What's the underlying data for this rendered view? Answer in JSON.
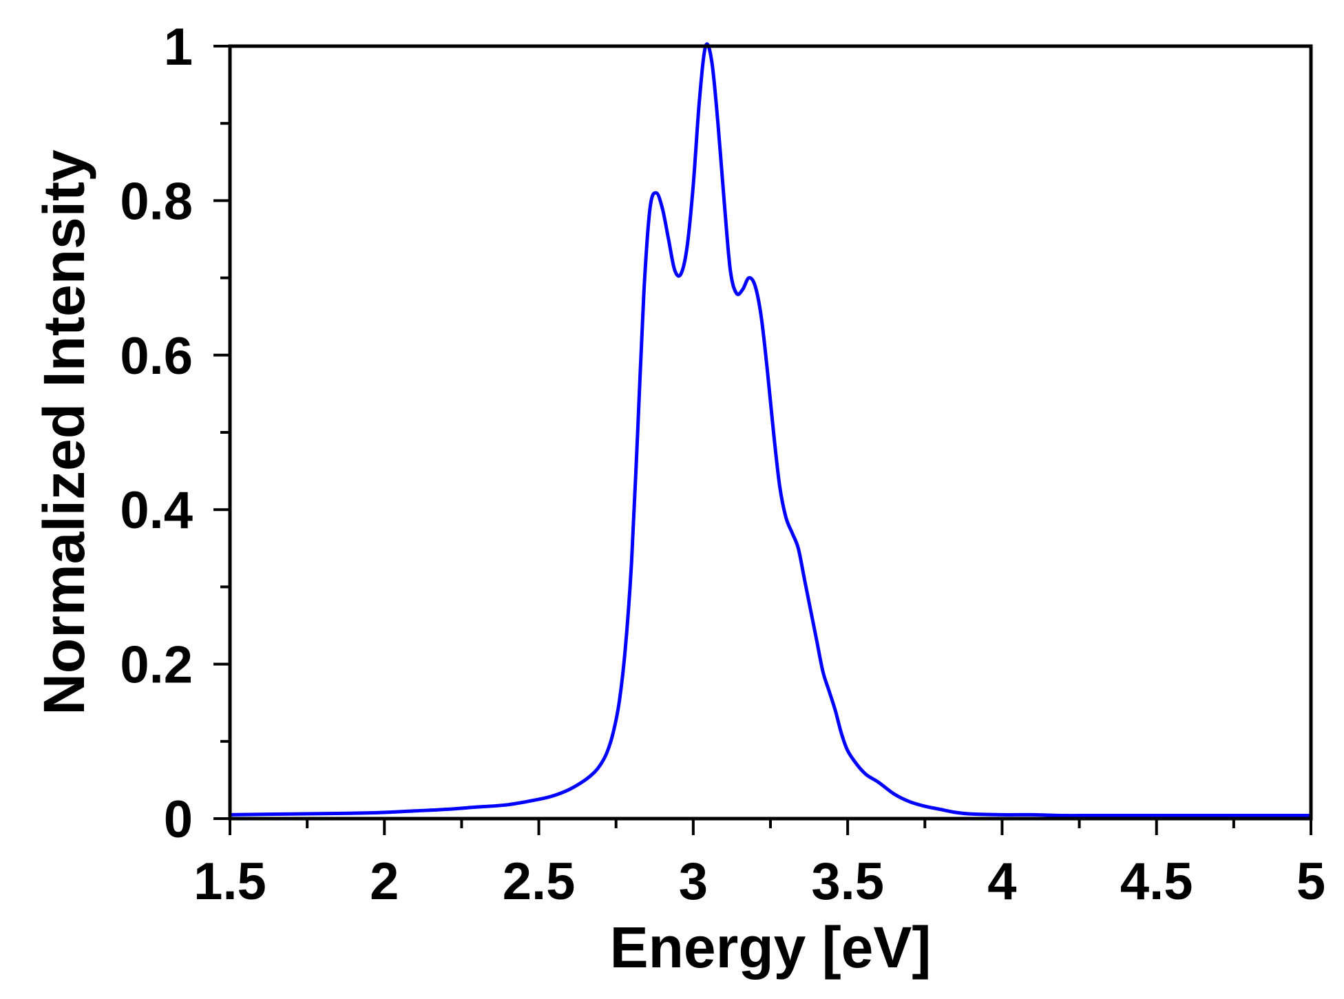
{
  "chart_data": {
    "type": "line",
    "title": "",
    "xlabel": "Energy [eV]",
    "ylabel": "Normalized Intensity",
    "xlim": [
      1.5,
      5
    ],
    "ylim": [
      0,
      1
    ],
    "x_major_ticks": [
      1.5,
      2,
      2.5,
      3,
      3.5,
      4,
      4.5,
      5
    ],
    "x_tick_labels": [
      "1.5",
      "2",
      "2.5",
      "3",
      "3.5",
      "4",
      "4.5",
      "5"
    ],
    "x_minor_ticks": [
      1.75,
      2.25,
      2.75,
      3.25,
      3.75,
      4.25,
      4.75
    ],
    "y_major_ticks": [
      0,
      0.2,
      0.4,
      0.6,
      0.8,
      1
    ],
    "y_tick_labels": [
      "0",
      "0.2",
      "0.4",
      "0.6",
      "0.8",
      "1"
    ],
    "y_minor_ticks": [
      0.1,
      0.3,
      0.5,
      0.7,
      0.9
    ],
    "grid": false,
    "line_color": "#0000ff",
    "series": [
      {
        "x": [
          1.5,
          1.7,
          1.9,
          2.0,
          2.1,
          2.2,
          2.3,
          2.4,
          2.5,
          2.55,
          2.6,
          2.65,
          2.68,
          2.7,
          2.72,
          2.74,
          2.76,
          2.78,
          2.8,
          2.82,
          2.84,
          2.86,
          2.88,
          2.9,
          2.92,
          2.94,
          2.96,
          2.98,
          3.0,
          3.02,
          3.04,
          3.06,
          3.08,
          3.1,
          3.12,
          3.14,
          3.16,
          3.18,
          3.2,
          3.22,
          3.24,
          3.26,
          3.28,
          3.3,
          3.32,
          3.34,
          3.36,
          3.38,
          3.4,
          3.42,
          3.44,
          3.46,
          3.48,
          3.5,
          3.53,
          3.56,
          3.6,
          3.65,
          3.7,
          3.75,
          3.8,
          3.85,
          3.9,
          4.0,
          4.1,
          4.2,
          4.3,
          4.5,
          4.75,
          5.0
        ],
        "y": [
          0.005,
          0.006,
          0.007,
          0.008,
          0.01,
          0.012,
          0.015,
          0.018,
          0.025,
          0.03,
          0.038,
          0.05,
          0.06,
          0.07,
          0.085,
          0.11,
          0.15,
          0.22,
          0.33,
          0.5,
          0.68,
          0.79,
          0.81,
          0.79,
          0.75,
          0.71,
          0.705,
          0.74,
          0.82,
          0.93,
          1.0,
          0.98,
          0.9,
          0.8,
          0.71,
          0.68,
          0.685,
          0.7,
          0.69,
          0.65,
          0.58,
          0.5,
          0.43,
          0.39,
          0.37,
          0.35,
          0.31,
          0.27,
          0.23,
          0.19,
          0.165,
          0.14,
          0.11,
          0.088,
          0.07,
          0.057,
          0.047,
          0.032,
          0.022,
          0.016,
          0.012,
          0.008,
          0.006,
          0.005,
          0.005,
          0.004,
          0.004,
          0.004,
          0.004,
          0.004
        ]
      }
    ]
  }
}
